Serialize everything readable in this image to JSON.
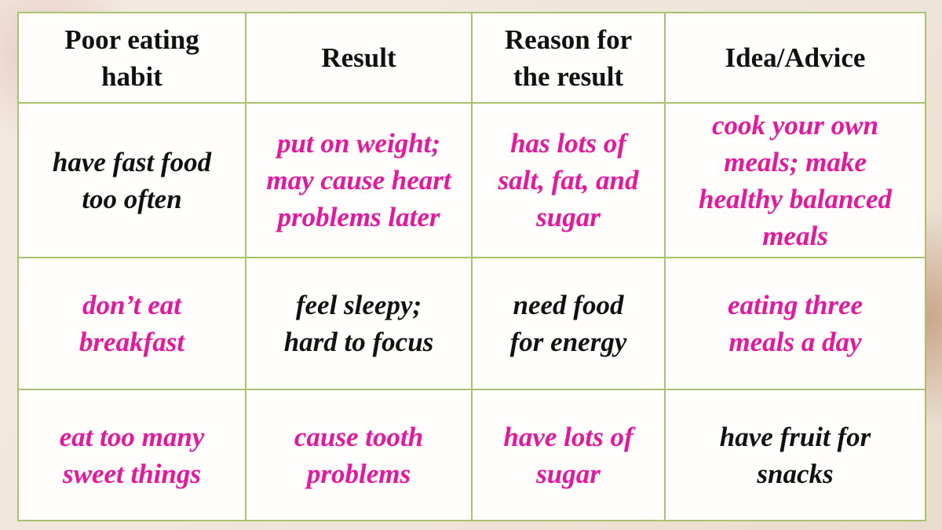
{
  "table": {
    "header": [
      [
        "Poor eating",
        "habit"
      ],
      [
        "Result"
      ],
      [
        "Reason for",
        "the result"
      ],
      [
        "Idea/Advice"
      ]
    ],
    "rows": [
      [
        [
          "have fast food",
          "too often"
        ],
        [
          "put on weight;",
          "may cause heart",
          "problems later"
        ],
        [
          "has lots of",
          "salt, fat, and",
          "sugar"
        ],
        [
          "cook your own",
          "meals; make",
          "healthy balanced",
          "meals"
        ]
      ],
      [
        [
          "don’t eat",
          "breakfast"
        ],
        [
          "feel sleepy;",
          "hard to focus"
        ],
        [
          "need food",
          "for energy"
        ],
        [
          "eating three",
          "meals a day"
        ]
      ],
      [
        [
          "eat too many",
          "sweet things"
        ],
        [
          "cause tooth",
          "problems"
        ],
        [
          "have lots of",
          "sugar"
        ],
        [
          "have fruit for",
          "snacks"
        ]
      ]
    ]
  }
}
